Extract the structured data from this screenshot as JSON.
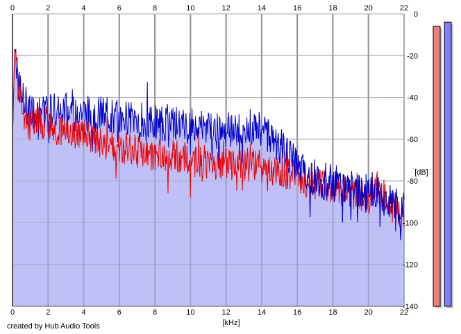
{
  "chart_data": {
    "type": "area",
    "xlabel": "[kHz]",
    "ylabel": "[dB]",
    "xlim": [
      0,
      22
    ],
    "ylim": [
      -140,
      0
    ],
    "x_ticks": [
      "0",
      "2",
      "4",
      "6",
      "8",
      "10",
      "12",
      "14",
      "16",
      "18",
      "20",
      "22"
    ],
    "y_ticks": [
      "0",
      "-20",
      "-40",
      "-60",
      "-80",
      "-100",
      "-120",
      "-140"
    ],
    "grid": true,
    "series": [
      {
        "color": "#0000cc",
        "fill": "#c0c0f8",
        "x": [
          0,
          0.1,
          0.15,
          0.2,
          0.3,
          0.5,
          0.8,
          1,
          1.5,
          2,
          2.5,
          3,
          3.5,
          4,
          4.5,
          5,
          6,
          7,
          8,
          9,
          10,
          11,
          12,
          13,
          13.5,
          14,
          14.5,
          15,
          15.5,
          16,
          16.5,
          17,
          17.5,
          18,
          18.5,
          19,
          19.5,
          20,
          20.5,
          21,
          21.5,
          22
        ],
        "values": [
          -60,
          -22,
          -15,
          -18,
          -28,
          -40,
          -44,
          -46,
          -47,
          -46,
          -45,
          -45,
          -44,
          -47,
          -48,
          -48,
          -50,
          -50,
          -52,
          -52,
          -54,
          -54,
          -56,
          -55,
          -54,
          -55,
          -58,
          -63,
          -68,
          -73,
          -77,
          -78,
          -80,
          -81,
          -82,
          -84,
          -85,
          -86,
          -87,
          -89,
          -91,
          -94
        ]
      },
      {
        "color": "#ee0000",
        "x": [
          0,
          0.1,
          0.15,
          0.2,
          0.3,
          0.5,
          0.8,
          1,
          1.5,
          2,
          2.5,
          3,
          3.5,
          4,
          4.5,
          5,
          6,
          7,
          8,
          9,
          10,
          11,
          12,
          13,
          14,
          15,
          16,
          17,
          18,
          19,
          20,
          20.5,
          21,
          21.5,
          22
        ],
        "values": [
          -60,
          -24,
          -18,
          -22,
          -32,
          -46,
          -52,
          -53,
          -52,
          -52,
          -55,
          -55,
          -57,
          -58,
          -60,
          -61,
          -64,
          -66,
          -68,
          -68,
          -70,
          -71,
          -72,
          -72,
          -73,
          -75,
          -78,
          -82,
          -83,
          -85,
          -88,
          -83,
          -88,
          -94,
          -96
        ]
      }
    ],
    "level_meters": [
      {
        "channel": "left",
        "color": "#f08080",
        "level_db": -6
      },
      {
        "channel": "right",
        "color": "#8080f8",
        "level_db": -4
      }
    ]
  },
  "footer": {
    "credit": "created by Hub Audio Tools"
  }
}
